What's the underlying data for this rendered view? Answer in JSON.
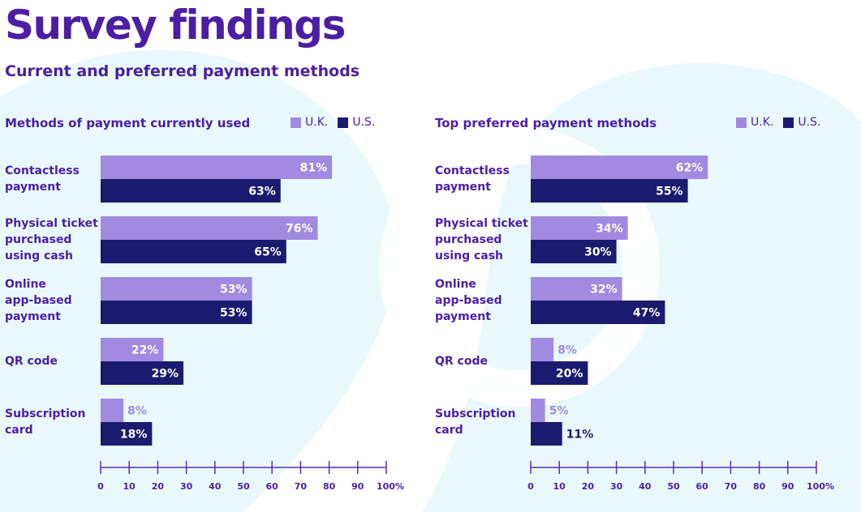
{
  "title": "Survey findings",
  "subtitle": "Current and preferred payment methods",
  "colors": {
    "uk": "#a18be0",
    "us": "#1c1a6e",
    "text": "#4a1fa3",
    "axis": "#5a2db0",
    "background_shape": "#e8f8fb"
  },
  "chart_data": [
    {
      "type": "bar",
      "orientation": "horizontal",
      "title": "Methods of payment currently used",
      "categories": [
        "Contactless\npayment",
        "Physical ticket\npurchased\nusing cash",
        "Online\napp-based\npayment",
        "QR code",
        "Subscription\ncard"
      ],
      "series": [
        {
          "name": "U.K.",
          "values": [
            81,
            76,
            53,
            22,
            8
          ]
        },
        {
          "name": "U.S.",
          "values": [
            63,
            65,
            53,
            29,
            18
          ]
        }
      ],
      "value_labels": {
        "U.K.": [
          "81%",
          "76%",
          "53%",
          "22%",
          "8%"
        ],
        "U.S.": [
          "63%",
          "65%",
          "53%",
          "29%",
          "18%"
        ]
      },
      "xlim": [
        0,
        100
      ],
      "xticks": [
        "0",
        "10",
        "20",
        "30",
        "40",
        "50",
        "60",
        "70",
        "80",
        "90",
        "100%"
      ],
      "legend": "top-right",
      "grid": false
    },
    {
      "type": "bar",
      "orientation": "horizontal",
      "title": "Top preferred payment methods",
      "categories": [
        "Contactless\npayment",
        "Physical ticket\npurchased\nusing cash",
        "Online\napp-based\npayment",
        "QR code",
        "Subscription\ncard"
      ],
      "series": [
        {
          "name": "U.K.",
          "values": [
            62,
            34,
            32,
            8,
            5
          ]
        },
        {
          "name": "U.S.",
          "values": [
            55,
            30,
            47,
            20,
            11
          ]
        }
      ],
      "value_labels": {
        "U.K.": [
          "62%",
          "34%",
          "32%",
          "8%",
          "5%"
        ],
        "U.S.": [
          "55%",
          "30%",
          "47%",
          "20%",
          "11%"
        ]
      },
      "xlim": [
        0,
        100
      ],
      "xticks": [
        "0",
        "10",
        "20",
        "30",
        "40",
        "50",
        "60",
        "70",
        "80",
        "90",
        "100%"
      ],
      "legend": "top-right",
      "grid": false
    }
  ]
}
